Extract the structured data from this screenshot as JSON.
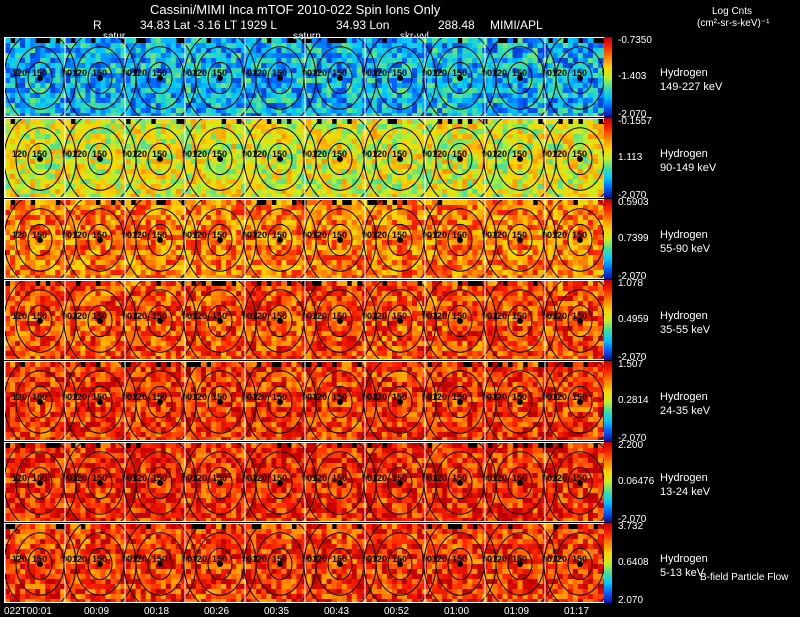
{
  "header": {
    "title": "Cassini/MIMI Inca mTOF  2010-022   Spin    Ions Only",
    "r_label": "R",
    "lat_lt_l": "34.83 Lat -3.16 LT 1929 L",
    "lon": "34.93 Lon",
    "r_value": "288.48",
    "org": "MIMI/APL",
    "units_title": "Log Cnts",
    "units": "(cm²-sr-s-keV)⁻¹"
  },
  "markers": {
    "satur": "satur",
    "saturn": "saturn",
    "skr": "skr-vvl"
  },
  "footer": {
    "flow_label": "B-field Particle Flow",
    "times": [
      "022T00:01",
      "00:09",
      "00:18",
      "00:26",
      "00:35",
      "00:43",
      "00:52",
      "01:00",
      "01:09",
      "01:17"
    ]
  },
  "colors": {
    "scale": [
      "#1010a0",
      "#0060ff",
      "#00c8ff",
      "#40e0a0",
      "#c8f020",
      "#ffd000",
      "#ff8000",
      "#ff2000",
      "#c00000"
    ]
  },
  "chart_data": {
    "type": "heatmap",
    "panels": [
      {
        "species": "Hydrogen",
        "energy": "149-227 keV",
        "max_label": "-0.7350",
        "mid_label": "-1.403",
        "min_label": "-2.070",
        "level": 0.25
      },
      {
        "species": "Hydrogen",
        "energy": "90-149 keV",
        "max_label": "-0.1557",
        "mid_label": "1.113",
        "min_label": "-2.070",
        "level": 0.55
      },
      {
        "species": "Hydrogen",
        "energy": "55-90 keV",
        "max_label": "0.5903",
        "mid_label": "0.7399",
        "min_label": "-2.070",
        "level": 0.75
      },
      {
        "species": "Hydrogen",
        "energy": "35-55 keV",
        "max_label": "1.078",
        "mid_label": "0.4959",
        "min_label": "-2.070",
        "level": 0.82
      },
      {
        "species": "Hydrogen",
        "energy": "24-35 keV",
        "max_label": "1.507",
        "mid_label": "0.2814",
        "min_label": "-2.070",
        "level": 0.86
      },
      {
        "species": "Hydrogen",
        "energy": "13-24 keV",
        "max_label": "2.200",
        "mid_label": "0.06476",
        "min_label": "-2.070",
        "level": 0.88
      },
      {
        "species": "Hydrogen",
        "energy": "5-13 keV",
        "max_label": "3.732",
        "mid_label": "0.6408",
        "min_label": "2.070",
        "level": 0.85
      }
    ],
    "contour_labels": [
      "30",
      "60",
      "90",
      "120",
      "150"
    ],
    "time_ticks": [
      "022T00:01",
      "00:09",
      "00:18",
      "00:26",
      "00:35",
      "00:43",
      "00:52",
      "01:00",
      "01:09",
      "01:17"
    ]
  }
}
